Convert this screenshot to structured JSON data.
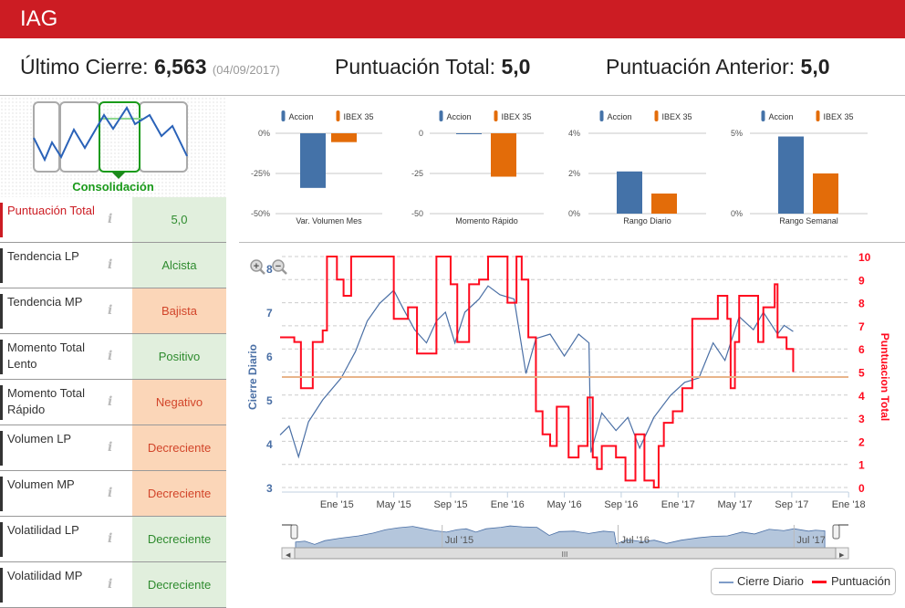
{
  "header": {
    "title": "IAG"
  },
  "stats": {
    "last_close_label": "Último Cierre:",
    "last_close_value": "6,563",
    "last_close_date": "(04/09/2017)",
    "total_score_label": "Puntuación Total:",
    "total_score_value": "5,0",
    "prev_score_label": "Puntuación Anterior:",
    "prev_score_value": "5,0"
  },
  "pattern": {
    "label": "Consolidación",
    "color": "#1a9a1a"
  },
  "score_row": {
    "label": "Puntuación Total",
    "value": "5,0"
  },
  "rows": [
    {
      "label": "Tendencia LP",
      "value": "Alcista",
      "status": "positive"
    },
    {
      "label": "Tendencia MP",
      "value": "Bajista",
      "status": "negative"
    },
    {
      "label": "Momento Total Lento",
      "value": "Positivo",
      "status": "positive"
    },
    {
      "label": "Momento Total Rápido",
      "value": "Negativo",
      "status": "negative"
    },
    {
      "label": "Volumen LP",
      "value": "Decreciente",
      "status": "negative"
    },
    {
      "label": "Volumen MP",
      "value": "Decreciente",
      "status": "negative"
    },
    {
      "label": "Volatilidad LP",
      "value": "Decreciente",
      "status": "positive"
    },
    {
      "label": "Volatilidad MP",
      "value": "Decreciente",
      "status": "positive"
    }
  ],
  "info_icon": "i",
  "colors": {
    "brand": "#cc1c23",
    "accion": "#4472a8",
    "ibex": "#e36c09",
    "price": "#4a6fa5",
    "score": "#ff0a1e",
    "reference": "#e8b48a"
  },
  "chart_data": [
    {
      "type": "bar",
      "legend": [
        "Accion",
        "IBEX 35"
      ],
      "category": "Var. Volumen Mes",
      "values": [
        -34,
        -5.5
      ],
      "ticks": [
        "0%",
        "-25%",
        "-50%"
      ],
      "ylim": [
        -50,
        0
      ]
    },
    {
      "type": "bar",
      "legend": [
        "Accion",
        "IBEX 35"
      ],
      "category": "Momento Rápido",
      "values": [
        -0.5,
        -27
      ],
      "ticks": [
        "0",
        "-25",
        "-50"
      ],
      "ylim": [
        -50,
        0
      ]
    },
    {
      "type": "bar",
      "legend": [
        "Accion",
        "IBEX 35"
      ],
      "category": "Rango Diario",
      "values": [
        2.1,
        1.0
      ],
      "ticks": [
        "4%",
        "2%",
        "0%"
      ],
      "ylim": [
        0,
        4
      ]
    },
    {
      "type": "bar",
      "legend": [
        "Accion",
        "IBEX 35"
      ],
      "category": "Rango Semanal",
      "values": [
        4.8,
        2.5
      ],
      "ticks": [
        "5%",
        "0%"
      ],
      "ylim": [
        0,
        5
      ]
    },
    {
      "type": "line",
      "ylabel": "Cierre Diario",
      "y2label": "Puntuacion Total",
      "ylim": [
        3,
        8
      ],
      "y2lim": [
        0,
        10
      ],
      "yticks": [
        "3",
        "4",
        "5",
        "6",
        "7",
        "8"
      ],
      "y2ticks": [
        "0",
        "1",
        "2",
        "3",
        "4",
        "5",
        "6",
        "7",
        "8",
        "9",
        "10"
      ],
      "xticks": [
        {
          "label": "Ene '15",
          "date": "2015-01"
        },
        {
          "label": "May '15",
          "date": "2015-05"
        },
        {
          "label": "Sep '15",
          "date": "2015-09"
        },
        {
          "label": "Ene '16",
          "date": "2016-01"
        },
        {
          "label": "May '16",
          "date": "2016-05"
        },
        {
          "label": "Sep '16",
          "date": "2016-09"
        },
        {
          "label": "Ene '17",
          "date": "2017-01"
        },
        {
          "label": "May '17",
          "date": "2017-05"
        },
        {
          "label": "Sep '17",
          "date": "2017-09"
        },
        {
          "label": "Ene '18",
          "date": "2018-01"
        }
      ],
      "reference_line": 5.52,
      "series": [
        {
          "name": "Cierre Diario",
          "points": [
            [
              "2014-09-01",
              4.2
            ],
            [
              "2014-09-20",
              4.4
            ],
            [
              "2014-10-10",
              3.7
            ],
            [
              "2014-11-01",
              4.5
            ],
            [
              "2014-12-01",
              5.0
            ],
            [
              "2015-01-10",
              5.5
            ],
            [
              "2015-02-10",
              6.1
            ],
            [
              "2015-03-05",
              6.8
            ],
            [
              "2015-04-01",
              7.2
            ],
            [
              "2015-05-01",
              7.5
            ],
            [
              "2015-05-20",
              7.1
            ],
            [
              "2015-06-15",
              6.6
            ],
            [
              "2015-07-10",
              6.3
            ],
            [
              "2015-08-01",
              6.8
            ],
            [
              "2015-08-20",
              7.0
            ],
            [
              "2015-09-10",
              6.3
            ],
            [
              "2015-10-01",
              7.0
            ],
            [
              "2015-11-01",
              7.3
            ],
            [
              "2015-11-20",
              7.6
            ],
            [
              "2015-12-15",
              7.4
            ],
            [
              "2016-01-15",
              7.3
            ],
            [
              "2016-02-10",
              5.6
            ],
            [
              "2016-03-01",
              6.4
            ],
            [
              "2016-04-01",
              6.5
            ],
            [
              "2016-05-01",
              6.0
            ],
            [
              "2016-06-01",
              6.5
            ],
            [
              "2016-06-23",
              6.3
            ],
            [
              "2016-06-27",
              3.8
            ],
            [
              "2016-07-20",
              4.7
            ],
            [
              "2016-08-20",
              4.3
            ],
            [
              "2016-09-15",
              4.6
            ],
            [
              "2016-10-10",
              3.9
            ],
            [
              "2016-11-10",
              4.6
            ],
            [
              "2016-12-15",
              5.1
            ],
            [
              "2017-01-15",
              5.4
            ],
            [
              "2017-02-15",
              5.5
            ],
            [
              "2017-03-15",
              6.3
            ],
            [
              "2017-04-10",
              5.9
            ],
            [
              "2017-05-10",
              6.9
            ],
            [
              "2017-06-10",
              6.6
            ],
            [
              "2017-07-01",
              7.0
            ],
            [
              "2017-08-01",
              6.5
            ],
            [
              "2017-08-15",
              6.7
            ],
            [
              "2017-09-04",
              6.56
            ]
          ]
        },
        {
          "name": "Puntuación",
          "points": [
            [
              "2014-09-01",
              6.5
            ],
            [
              "2014-10-01",
              6.3
            ],
            [
              "2014-10-15",
              4.3
            ],
            [
              "2014-11-10",
              6.3
            ],
            [
              "2014-12-01",
              6.8
            ],
            [
              "2014-12-10",
              10
            ],
            [
              "2015-01-01",
              9
            ],
            [
              "2015-01-15",
              8.3
            ],
            [
              "2015-02-01",
              10
            ],
            [
              "2015-05-01",
              7.3
            ],
            [
              "2015-06-01",
              7.8
            ],
            [
              "2015-06-20",
              5.8
            ],
            [
              "2015-08-01",
              10
            ],
            [
              "2015-09-01",
              8.8
            ],
            [
              "2015-09-15",
              6.3
            ],
            [
              "2015-10-10",
              8.8
            ],
            [
              "2015-11-01",
              9
            ],
            [
              "2015-11-20",
              10
            ],
            [
              "2016-01-01",
              8
            ],
            [
              "2016-01-20",
              10
            ],
            [
              "2016-02-01",
              9
            ],
            [
              "2016-02-15",
              6.5
            ],
            [
              "2016-03-01",
              3.3
            ],
            [
              "2016-03-15",
              2.3
            ],
            [
              "2016-04-01",
              1.8
            ],
            [
              "2016-04-15",
              3.5
            ],
            [
              "2016-05-10",
              1.3
            ],
            [
              "2016-06-01",
              1.8
            ],
            [
              "2016-06-20",
              3.9
            ],
            [
              "2016-07-01",
              1.3
            ],
            [
              "2016-07-10",
              0.8
            ],
            [
              "2016-07-20",
              1.8
            ],
            [
              "2016-08-20",
              1.3
            ],
            [
              "2016-09-10",
              0.3
            ],
            [
              "2016-10-01",
              2.3
            ],
            [
              "2016-10-20",
              0.3
            ],
            [
              "2016-11-10",
              0
            ],
            [
              "2016-11-20",
              1.8
            ],
            [
              "2016-12-01",
              2.8
            ],
            [
              "2016-12-20",
              3.3
            ],
            [
              "2017-01-10",
              4.3
            ],
            [
              "2017-02-01",
              7.3
            ],
            [
              "2017-03-25",
              8.3
            ],
            [
              "2017-04-15",
              7.3
            ],
            [
              "2017-04-22",
              4.3
            ],
            [
              "2017-05-01",
              6.3
            ],
            [
              "2017-05-10",
              8.3
            ],
            [
              "2017-06-20",
              6.3
            ],
            [
              "2017-07-01",
              7.8
            ],
            [
              "2017-07-25",
              8.8
            ],
            [
              "2017-08-01",
              6.5
            ],
            [
              "2017-08-20",
              6.0
            ],
            [
              "2017-09-04",
              5.0
            ]
          ]
        }
      ],
      "navigator": {
        "labels": [
          "Jul '15",
          "Jul '16",
          "Jul '17"
        ]
      },
      "legend": [
        "Cierre Diario",
        "Puntuación"
      ]
    }
  ]
}
